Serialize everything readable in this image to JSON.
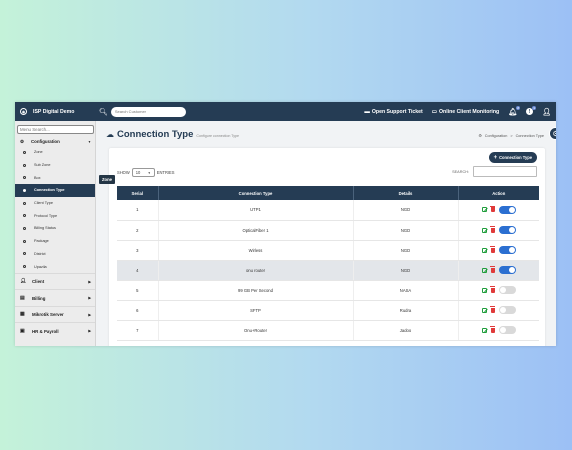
{
  "app": {
    "brand": "ISP Digital Demo",
    "search_placeholder": "Search Customer",
    "open_ticket": "Open Support Ticket",
    "online_monitoring": "Online Client Monitoring",
    "notification_count_1": "2",
    "notification_count_2": "1"
  },
  "sidebar": {
    "menu_search_placeholder": "Menu Search...",
    "config_label": "Configuration",
    "config_items": [
      "Zone",
      "Sub Zone",
      "Box",
      "Connection Type",
      "Client Type",
      "Protocol Type",
      "Billing Status",
      "Package",
      "District",
      "Upazila"
    ],
    "active_index": 3,
    "groups": [
      {
        "label": "Client",
        "icon": "user-icon"
      },
      {
        "label": "Billing",
        "icon": "file-icon"
      },
      {
        "label": "Mikrotik Server",
        "icon": "server-icon"
      },
      {
        "label": "HR & Payroll",
        "icon": "id-card-icon"
      }
    ]
  },
  "tooltip": "Zone",
  "page": {
    "title": "Connection Type",
    "subtitle": "Configure connection Type",
    "breadcrumb_root": "Configuration",
    "breadcrumb_sep": ">",
    "breadcrumb_current": "Connection Type",
    "add_button": "Connection Type",
    "show_label": "SHOW",
    "entries_value": "10",
    "entries_label": "ENTRIES",
    "search_label": "SEARCH:"
  },
  "table": {
    "headers": [
      "Serial",
      "Connection Type",
      "Details",
      "Action"
    ],
    "rows": [
      {
        "serial": "1",
        "type": "UTP1",
        "details": "NGD",
        "active": true
      },
      {
        "serial": "2",
        "type": "OpticalFiber 1",
        "details": "NGD",
        "active": true
      },
      {
        "serial": "3",
        "type": "Wirless",
        "details": "NGD",
        "active": true
      },
      {
        "serial": "4",
        "type": "onu router",
        "details": "NGD",
        "active": true,
        "highlight": true
      },
      {
        "serial": "5",
        "type": "99 GB Per Second",
        "details": "NASA",
        "active": false
      },
      {
        "serial": "6",
        "type": "SFTP",
        "details": "Rudra",
        "active": false
      },
      {
        "serial": "7",
        "type": "Onu+Router",
        "details": "Jadoo",
        "active": false
      }
    ]
  }
}
